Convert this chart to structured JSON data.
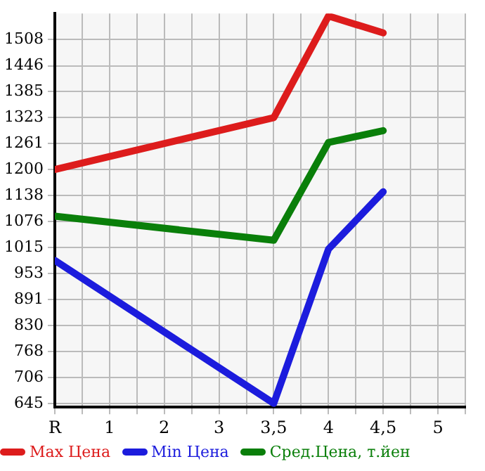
{
  "chart_data": {
    "type": "line",
    "categories": [
      "R",
      "1",
      "2",
      "3",
      "3,5",
      "4",
      "4,5",
      "5"
    ],
    "series": [
      {
        "name": "Max Цена",
        "color": "#dd1c1c",
        "values": [
          1200,
          null,
          null,
          null,
          1323,
          1564,
          1524,
          null
        ]
      },
      {
        "name": "Min Цена",
        "color": "#1c1cdd",
        "values": [
          984,
          null,
          null,
          null,
          645,
          1011,
          1147,
          null
        ]
      },
      {
        "name": "Сред.Цена, т.йен",
        "color": "#0a7f0a",
        "values": [
          1089,
          null,
          null,
          null,
          1032,
          1264,
          1292,
          null
        ]
      }
    ],
    "ylim": [
      636,
      1570
    ],
    "yticks": [
      645,
      706,
      768,
      830,
      891,
      953,
      1015,
      1076,
      1138,
      1200,
      1261,
      1323,
      1385,
      1446,
      1508
    ],
    "grid": true,
    "legend": "bottom",
    "marker": "none",
    "line_style": "solid"
  }
}
